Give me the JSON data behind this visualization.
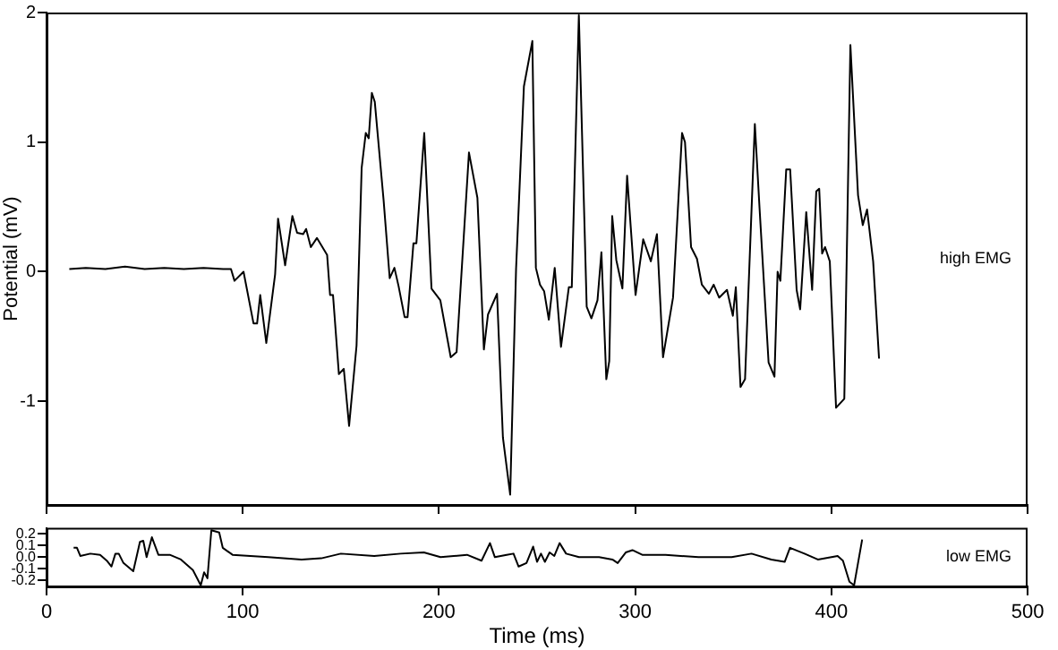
{
  "chart_data": [
    {
      "type": "line",
      "ylabel": "Potential (mV)",
      "xlim": [
        0,
        500
      ],
      "xticks": [
        0,
        100,
        200,
        300,
        400,
        500
      ],
      "ylim": [
        -1.8,
        2
      ],
      "yticks": [
        -1,
        0,
        1,
        2
      ],
      "tick_labels": "y",
      "grid": false,
      "legend": false,
      "marker": "none",
      "line_style": "solid",
      "series": [
        {
          "name": "high EMG",
          "color": "#000000",
          "x": [
            11.6,
            20,
            30,
            40,
            50,
            60,
            70,
            80,
            90,
            94,
            95.8,
            100.4,
            105.5,
            107.3,
            108.9,
            112,
            116.5,
            118,
            121.6,
            125.3,
            127.7,
            130.8,
            132.3,
            134.7,
            137.8,
            143,
            144.5,
            146,
            149,
            151.5,
            154.2,
            158,
            160.6,
            162.7,
            164.2,
            165.8,
            167.3,
            171.8,
            174.9,
            177.3,
            179.4,
            182.5,
            184,
            187,
            188.5,
            192.5,
            196.2,
            200.7,
            206,
            209,
            215.3,
            219.6,
            222.9,
            225,
            229.6,
            232.6,
            236.3,
            239.3,
            243.3,
            247.6,
            249.4,
            251.5,
            253.6,
            256,
            259,
            262.2,
            266.2,
            267.7,
            271.3,
            275.3,
            277.7,
            280.8,
            282.8,
            285.3,
            286.8,
            288.3,
            290.4,
            293.5,
            295.9,
            300.2,
            304.1,
            308,
            311.1,
            314.2,
            319.3,
            323.9,
            325.4,
            328.5,
            331.5,
            334,
            337.6,
            340,
            342.8,
            346.8,
            349.8,
            351.3,
            353.7,
            356,
            361,
            363.4,
            368,
            371,
            372.6,
            374,
            377,
            379,
            382.3,
            384.1,
            387.2,
            390.2,
            392.3,
            393.8,
            395.3,
            396.8,
            399.2,
            402.4,
            406.6,
            409.7,
            413.6,
            416,
            418.2,
            421.3,
            424.3
          ],
          "values": [
            0.02,
            0.03,
            0.02,
            0.04,
            0.02,
            0.03,
            0.02,
            0.03,
            0.02,
            0.02,
            -0.07,
            0,
            -0.4,
            -0.4,
            -0.18,
            -0.55,
            -0.02,
            0.41,
            0.05,
            0.43,
            0.3,
            0.29,
            0.33,
            0.19,
            0.26,
            0.13,
            -0.18,
            -0.18,
            -0.79,
            -0.75,
            -1.19,
            -0.57,
            0.8,
            1.07,
            1.03,
            1.38,
            1.31,
            0.55,
            -0.05,
            0.03,
            -0.11,
            -0.35,
            -0.35,
            0.22,
            0.22,
            1.07,
            -0.13,
            -0.22,
            -0.66,
            -0.62,
            0.92,
            0.57,
            -0.6,
            -0.33,
            -0.17,
            -1.28,
            -1.72,
            0.02,
            1.43,
            1.78,
            0.03,
            -0.1,
            -0.15,
            -0.37,
            0.03,
            -0.58,
            -0.12,
            -0.12,
            1.98,
            -0.27,
            -0.36,
            -0.22,
            0.15,
            -0.83,
            -0.69,
            0.43,
            0.09,
            -0.13,
            0.74,
            -0.18,
            0.25,
            0.08,
            0.29,
            -0.66,
            -0.2,
            1.07,
            1,
            0.19,
            0.1,
            -0.1,
            -0.17,
            -0.1,
            -0.2,
            -0.14,
            -0.34,
            -0.12,
            -0.89,
            -0.83,
            1.14,
            0.49,
            -0.7,
            -0.81,
            0,
            -0.07,
            0.79,
            0.79,
            -0.14,
            -0.29,
            0.46,
            -0.14,
            0.62,
            0.64,
            0.14,
            0.19,
            0.08,
            -1.05,
            -0.98,
            1.75,
            0.59,
            0.36,
            0.48,
            0.08,
            -0.67
          ]
        }
      ]
    },
    {
      "type": "line",
      "xlabel": "Time (ms)",
      "xlim": [
        0,
        500
      ],
      "xticks": [
        0,
        100,
        200,
        300,
        400,
        500
      ],
      "ylim": [
        -0.25,
        0.25
      ],
      "yticks": [
        {
          "value": -0.2,
          "label": "-0.2"
        },
        {
          "value": -0.1,
          "label": "-0.1"
        },
        {
          "value": 0,
          "label": "0.0"
        },
        {
          "value": 0.1,
          "label": "0.1"
        },
        {
          "value": 0.2,
          "label": "0.2"
        }
      ],
      "grid": false,
      "legend": false,
      "marker": "none",
      "line_style": "solid",
      "series": [
        {
          "name": "low EMG",
          "color": "#000000",
          "x": [
            13.8,
            15.5,
            17.2,
            22.3,
            27.3,
            30.7,
            33.1,
            35.1,
            36.8,
            39.2,
            44.2,
            47.6,
            49.3,
            51,
            53.7,
            57,
            62.8,
            68.5,
            74.6,
            78.6,
            80.3,
            82,
            84,
            88,
            89.8,
            94.8,
            113,
            130,
            140,
            150,
            167,
            180.5,
            192.3,
            200.8,
            214.3,
            221.7,
            226,
            228.5,
            234.5,
            238,
            240.6,
            244.6,
            248,
            250,
            252,
            254,
            256.4,
            258.8,
            261.5,
            264.8,
            271.4,
            281.6,
            288.4,
            291.1,
            295.2,
            298.6,
            303.6,
            315.5,
            332.3,
            349.2,
            359.3,
            369.4,
            376.2,
            378.9,
            386.3,
            393.1,
            403.2,
            405.9,
            409.2,
            411.6,
            415.7
          ],
          "values": [
            0.08,
            0.08,
            0.01,
            0.03,
            0.02,
            -0.03,
            -0.08,
            0.03,
            0.03,
            -0.05,
            -0.12,
            0.13,
            0.14,
            0,
            0.17,
            0.02,
            0.02,
            -0.02,
            -0.11,
            -0.24,
            -0.13,
            -0.18,
            0.23,
            0.21,
            0.08,
            0.02,
            0,
            -0.02,
            -0.01,
            0.03,
            0.01,
            0.03,
            0.04,
            0,
            0.02,
            -0.03,
            0.12,
            0,
            0.02,
            0.03,
            -0.08,
            -0.05,
            0.09,
            -0.04,
            0.03,
            -0.04,
            0.04,
            0.01,
            0.12,
            0.03,
            0,
            0,
            -0.02,
            -0.05,
            0.04,
            0.06,
            0.02,
            0.02,
            0,
            0,
            0.03,
            -0.02,
            -0.04,
            0.08,
            0.03,
            -0.02,
            0.01,
            -0.03,
            -0.21,
            -0.24,
            0.15
          ]
        }
      ]
    }
  ]
}
